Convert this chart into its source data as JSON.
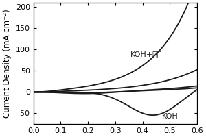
{
  "xlabel": "",
  "ylabel": "Current Density (mA cm⁻²)",
  "xlim": [
    0.0,
    0.6
  ],
  "ylim": [
    -75,
    210
  ],
  "yticks": [
    -50,
    0,
    50,
    100,
    150,
    200
  ],
  "xticks": [
    0.0,
    0.1,
    0.2,
    0.3,
    0.4,
    0.5,
    0.6
  ],
  "label_koh": "KOH",
  "label_methanol": "KOH+甲醇",
  "background_color": "#ffffff",
  "line_color": "#1a1a1a",
  "fontsize_label": 8.5,
  "fontsize_tick": 8,
  "fontsize_annot": 8
}
